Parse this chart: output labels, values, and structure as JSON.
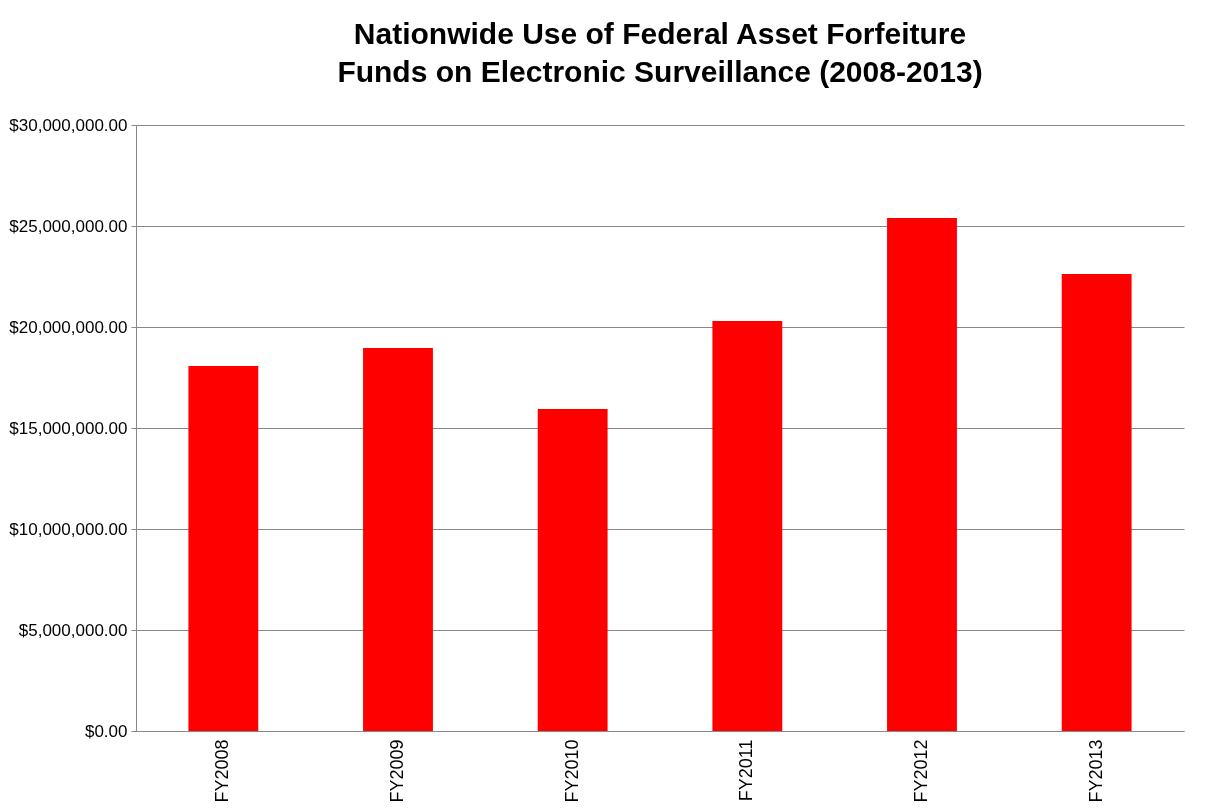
{
  "chart_data": {
    "type": "bar",
    "title": "Nationwide Use of Federal Asset Forfeiture Funds on Electronic Surveillance (2008-2013)",
    "categories": [
      "FY2008",
      "FY2009",
      "FY2010",
      "FY2011",
      "FY2012",
      "FY2013"
    ],
    "values": [
      18070000,
      18960000,
      15940000,
      20300000,
      25400000,
      22620000
    ],
    "color": "#ff0000",
    "ylim": [
      0,
      30000000
    ],
    "yticks": [
      {
        "value": 0,
        "label": "$0.00"
      },
      {
        "value": 5000000,
        "label": "$5,000,000.00"
      },
      {
        "value": 10000000,
        "label": "$10,000,000.00"
      },
      {
        "value": 15000000,
        "label": "$15,000,000.00"
      },
      {
        "value": 20000000,
        "label": "$20,000,000.00"
      },
      {
        "value": 25000000,
        "label": "$25,000,000.00"
      },
      {
        "value": 30000000,
        "label": "$30,000,000.00"
      }
    ],
    "grid": "y"
  }
}
